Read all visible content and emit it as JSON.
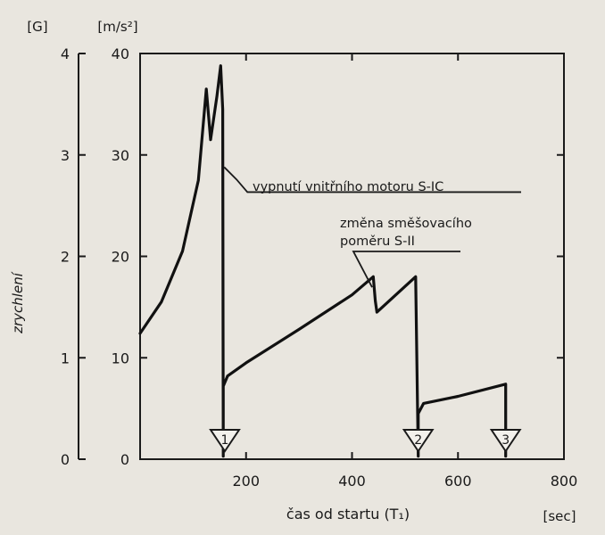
{
  "chart_data": {
    "type": "line",
    "title": "",
    "unit_left": "[G]",
    "unit_right": "[m/s²]",
    "ylabel": "zrychlení",
    "xlabel": "čas od startu (T₁)",
    "xunit": "[sec]",
    "xlim": [
      0,
      800
    ],
    "ylim": [
      0,
      40
    ],
    "ylim_g": [
      0,
      4
    ],
    "x_ticks": [
      "200",
      "400",
      "600",
      "800"
    ],
    "y_ticks": [
      "0",
      "10",
      "20",
      "30",
      "40"
    ],
    "g_ticks": [
      "0",
      "1",
      "2",
      "3",
      "4"
    ],
    "series": [
      {
        "x": [
          0,
          40,
          80,
          110,
          125,
          133,
          145,
          152,
          156,
          157,
          157,
          165,
          200,
          300,
          400,
          440,
          444,
          447,
          520,
          525,
          525,
          535,
          600,
          690,
          690
        ],
        "y": [
          12.4,
          15.5,
          20.5,
          27.5,
          36.5,
          31.5,
          35.8,
          38.8,
          34.5,
          0.3,
          7.2,
          8.2,
          9.5,
          12.8,
          16.2,
          18.0,
          15.6,
          14.5,
          18.0,
          0.3,
          4.5,
          5.5,
          6.2,
          7.4,
          0.3
        ]
      }
    ],
    "annotations": [
      {
        "text": "vypnutí vnitřního motoru S-IC",
        "x": 152,
        "y": 29.5
      },
      {
        "text": "změna směšovacího",
        "text2": "poměru S-II",
        "x": 443,
        "y": 17.3
      }
    ],
    "markers": [
      {
        "label": "1",
        "x": 160
      },
      {
        "label": "2",
        "x": 525
      },
      {
        "label": "3",
        "x": 690
      }
    ]
  }
}
